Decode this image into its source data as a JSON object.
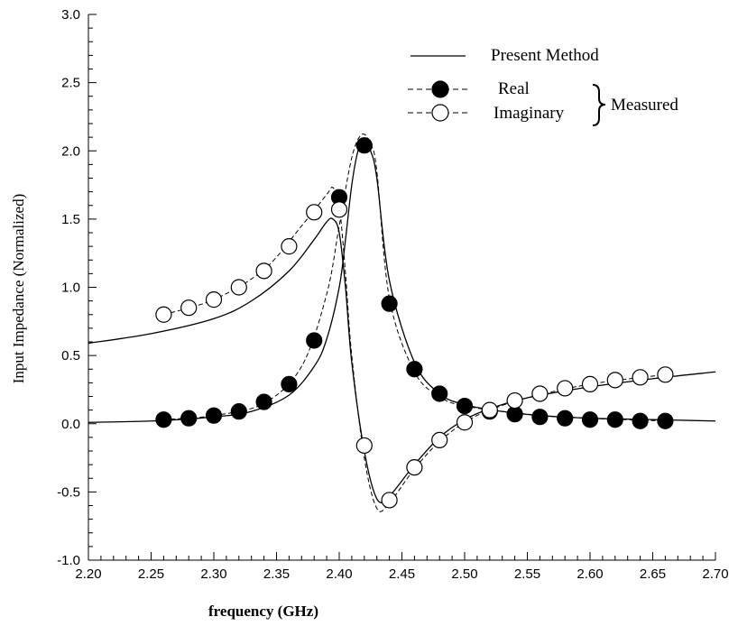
{
  "chart_data": {
    "type": "line",
    "xlabel": "frequency (GHz)",
    "ylabel": "Input Impedance (Normalized)",
    "xlim": [
      2.2,
      2.7
    ],
    "ylim": [
      -1.0,
      3.0
    ],
    "xticks": [
      "2.20",
      "2.25",
      "2.30",
      "2.35",
      "2.40",
      "2.45",
      "2.50",
      "2.55",
      "2.60",
      "2.65",
      "2.70"
    ],
    "yticks": [
      "-1.0",
      "-0.5",
      "0.0",
      "0.5",
      "1.0",
      "1.5",
      "2.0",
      "2.5",
      "3.0"
    ],
    "grid": false,
    "legend": {
      "position": "top-right",
      "entries": [
        "Present Method",
        "Real",
        "Imaginary"
      ],
      "group_label": "Measured"
    },
    "series": [
      {
        "name": "Present Method",
        "style": "solid-line",
        "component": "real",
        "x": [
          2.2,
          2.25,
          2.3,
          2.33,
          2.36,
          2.38,
          2.39,
          2.4,
          2.405,
          2.41,
          2.415,
          2.42,
          2.425,
          2.43,
          2.44,
          2.46,
          2.48,
          2.5,
          2.53,
          2.56,
          2.6,
          2.65,
          2.7
        ],
        "y": [
          0.01,
          0.02,
          0.05,
          0.09,
          0.21,
          0.42,
          0.62,
          1.0,
          1.35,
          1.75,
          2.0,
          2.07,
          2.0,
          1.8,
          1.05,
          0.45,
          0.22,
          0.14,
          0.09,
          0.06,
          0.04,
          0.03,
          0.02
        ]
      },
      {
        "name": "Present Method",
        "style": "solid-line",
        "component": "imaginary",
        "x": [
          2.2,
          2.25,
          2.3,
          2.33,
          2.36,
          2.38,
          2.39,
          2.395,
          2.4,
          2.405,
          2.41,
          2.42,
          2.43,
          2.44,
          2.46,
          2.48,
          2.5,
          2.52,
          2.55,
          2.6,
          2.65,
          2.7
        ],
        "y": [
          0.59,
          0.66,
          0.77,
          0.9,
          1.12,
          1.35,
          1.48,
          1.5,
          1.4,
          1.0,
          0.45,
          -0.2,
          -0.55,
          -0.53,
          -0.3,
          -0.1,
          0.03,
          0.11,
          0.19,
          0.27,
          0.33,
          0.38
        ]
      },
      {
        "name": "Real",
        "style": "dashed-filled-circles",
        "component": "real",
        "measured": true,
        "x": [
          2.26,
          2.28,
          2.3,
          2.32,
          2.34,
          2.36,
          2.38,
          2.4,
          2.42,
          2.44,
          2.46,
          2.48,
          2.5,
          2.52,
          2.54,
          2.56,
          2.58,
          2.6,
          2.62,
          2.64,
          2.66
        ],
        "y": [
          0.03,
          0.04,
          0.06,
          0.09,
          0.16,
          0.29,
          0.61,
          1.66,
          2.04,
          0.88,
          0.4,
          0.22,
          0.13,
          0.09,
          0.07,
          0.05,
          0.04,
          0.03,
          0.03,
          0.02,
          0.02
        ],
        "dashed_x": [
          2.26,
          2.3,
          2.34,
          2.37,
          2.39,
          2.4,
          2.41,
          2.418,
          2.425,
          2.43,
          2.44,
          2.46,
          2.48,
          2.5,
          2.55,
          2.6,
          2.66
        ],
        "dashed_y": [
          0.03,
          0.06,
          0.15,
          0.42,
          0.95,
          1.45,
          1.95,
          2.12,
          2.05,
          1.85,
          0.92,
          0.38,
          0.2,
          0.13,
          0.07,
          0.04,
          0.02
        ]
      },
      {
        "name": "Imaginary",
        "style": "dashed-open-circles",
        "component": "imaginary",
        "measured": true,
        "x": [
          2.26,
          2.28,
          2.3,
          2.32,
          2.34,
          2.36,
          2.38,
          2.4,
          2.42,
          2.44,
          2.46,
          2.48,
          2.5,
          2.52,
          2.54,
          2.56,
          2.58,
          2.6,
          2.62,
          2.64,
          2.66
        ],
        "y": [
          0.8,
          0.85,
          0.91,
          1.0,
          1.12,
          1.3,
          1.55,
          1.57,
          -0.16,
          -0.56,
          -0.32,
          -0.12,
          0.01,
          0.1,
          0.17,
          0.22,
          0.26,
          0.29,
          0.32,
          0.34,
          0.36
        ],
        "dashed_x": [
          2.26,
          2.3,
          2.34,
          2.37,
          2.39,
          2.395,
          2.4,
          2.405,
          2.41,
          2.42,
          2.43,
          2.44,
          2.46,
          2.48,
          2.5,
          2.52,
          2.55,
          2.6,
          2.66
        ],
        "dashed_y": [
          0.8,
          0.91,
          1.13,
          1.45,
          1.68,
          1.73,
          1.6,
          1.1,
          0.5,
          -0.25,
          -0.62,
          -0.58,
          -0.33,
          -0.13,
          0.01,
          0.1,
          0.19,
          0.29,
          0.36
        ]
      }
    ]
  }
}
